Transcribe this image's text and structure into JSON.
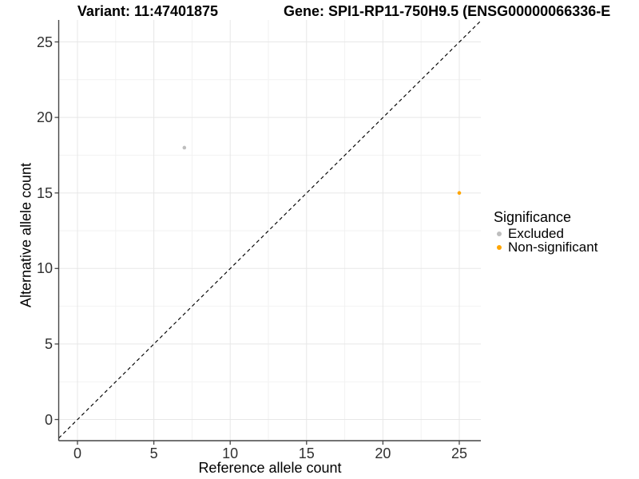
{
  "titles": {
    "variant": "Variant: 11:47401875",
    "gene": "Gene: SPI1-RP11-750H9.5 (ENSG00000066336-E"
  },
  "chart_data": {
    "type": "scatter",
    "title": "Variant: 11:47401875 — Gene: SPI1-RP11-750H9.5 (ENSG00000066336-E…)",
    "xlabel": "Reference allele count",
    "ylabel": "Alternative allele count",
    "x_ticks": [
      0,
      5,
      10,
      15,
      20,
      25
    ],
    "y_ticks": [
      0,
      5,
      10,
      15,
      20,
      25
    ],
    "x_minor_ticks": [
      2.5,
      7.5,
      12.5,
      17.5,
      22.5
    ],
    "y_minor_ticks": [
      2.5,
      7.5,
      12.5,
      17.5,
      22.5
    ],
    "xlim": [
      -1.3,
      26.5
    ],
    "ylim": [
      -1.4,
      26.5
    ],
    "grid": "major+minor",
    "reference_line": {
      "type": "identity y=x",
      "style": "dashed",
      "color": "#000000"
    },
    "legend": {
      "title": "Significance",
      "position": "right"
    },
    "series": [
      {
        "name": "Excluded",
        "color": "#BEBEBE",
        "points": [
          {
            "x": 7,
            "y": 18
          }
        ]
      },
      {
        "name": "Non-significant",
        "color": "#FFA500",
        "points": [
          {
            "x": 25,
            "y": 15
          }
        ]
      }
    ],
    "colors": {
      "excluded": "#BEBEBE",
      "non_significant": "#FFA500",
      "grid_major": "#e7e7e7",
      "grid_minor": "#f2f2f2",
      "axis_line": "#454545"
    }
  }
}
